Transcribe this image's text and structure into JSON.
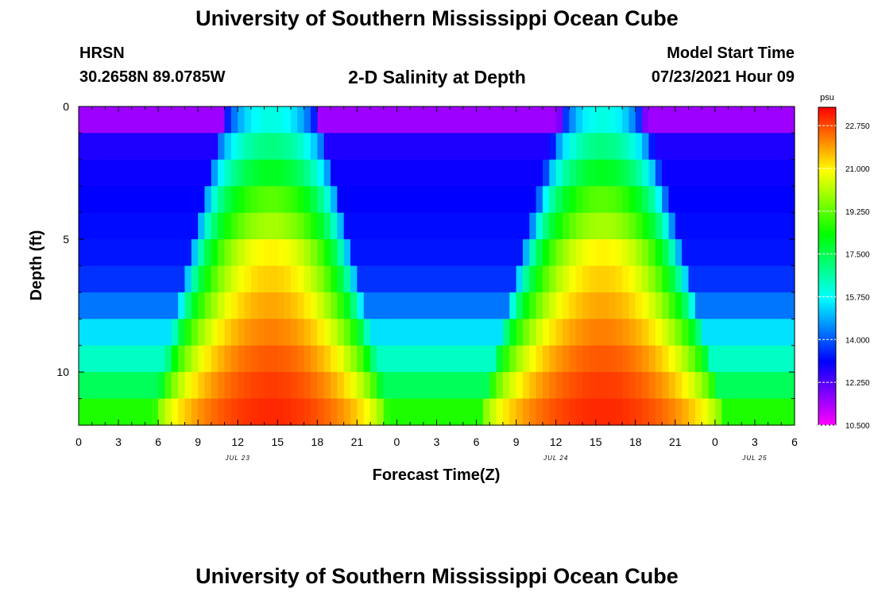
{
  "header": {
    "title": "University of Southern Mississippi Ocean Cube",
    "station": "HRSN",
    "coords": "30.2658N  89.0785W",
    "subtitle": "2-D Salinity at Depth",
    "model_start_label": "Model Start Time",
    "model_start_value": "07/23/2021 Hour 09"
  },
  "footer": {
    "title": "University of Southern Mississippi Ocean Cube"
  },
  "chart_data": {
    "type": "heatmap",
    "title": "2-D Salinity at Depth",
    "xlabel": "Forecast Time(Z)",
    "ylabel": "Depth (ft)",
    "x_start_hour": 0,
    "x_end_hour": 54,
    "x_tick_labels": [
      "0",
      "3",
      "6",
      "9",
      "12",
      "15",
      "18",
      "21",
      "0",
      "3",
      "6",
      "9",
      "12",
      "15",
      "18",
      "21",
      "0",
      "3",
      "6"
    ],
    "date_labels": [
      {
        "hour": 12,
        "label": "JUL 23"
      },
      {
        "hour": 36,
        "label": "JUL 24"
      },
      {
        "hour": 51,
        "label": "JUL 25"
      }
    ],
    "ylim": [
      0,
      12
    ],
    "y_tick_labels": [
      {
        "depth": 0,
        "label": "0"
      },
      {
        "depth": 5,
        "label": "5"
      },
      {
        "depth": 10,
        "label": "10"
      }
    ],
    "colorbar": {
      "unit": "psu",
      "min": 10.5,
      "max": 23.5,
      "tick_labels": [
        "22.750",
        "21.000",
        "19.250",
        "17.500",
        "15.750",
        "14.000",
        "12.250",
        "10.500"
      ],
      "tick_values": [
        22.75,
        21.0,
        19.25,
        17.5,
        15.75,
        14.0,
        12.25,
        10.5
      ]
    },
    "depths_ft": [
      0.5,
      1.5,
      2.5,
      3.5,
      4.5,
      5.5,
      6.5,
      7.5,
      8.5,
      9.5,
      10.5,
      11.5
    ],
    "low_salinity_psu": [
      11.5,
      12.8,
      13.0,
      13.1,
      13.2,
      13.3,
      13.6,
      14.3,
      15.4,
      16.3,
      17.4,
      18.6
    ],
    "high_salinity_psu": [
      16.0,
      17.0,
      18.0,
      19.2,
      20.0,
      21.0,
      21.4,
      21.8,
      22.2,
      22.6,
      22.9,
      23.1
    ],
    "ridge_half_widths_hours": [
      {
        "peak_hour": 14.5,
        "half_width_top": 3.5,
        "half_width_bottom": 9.0
      },
      {
        "peak_hour": 39.5,
        "half_width_top": 3.0,
        "half_width_bottom": 9.5
      }
    ]
  }
}
